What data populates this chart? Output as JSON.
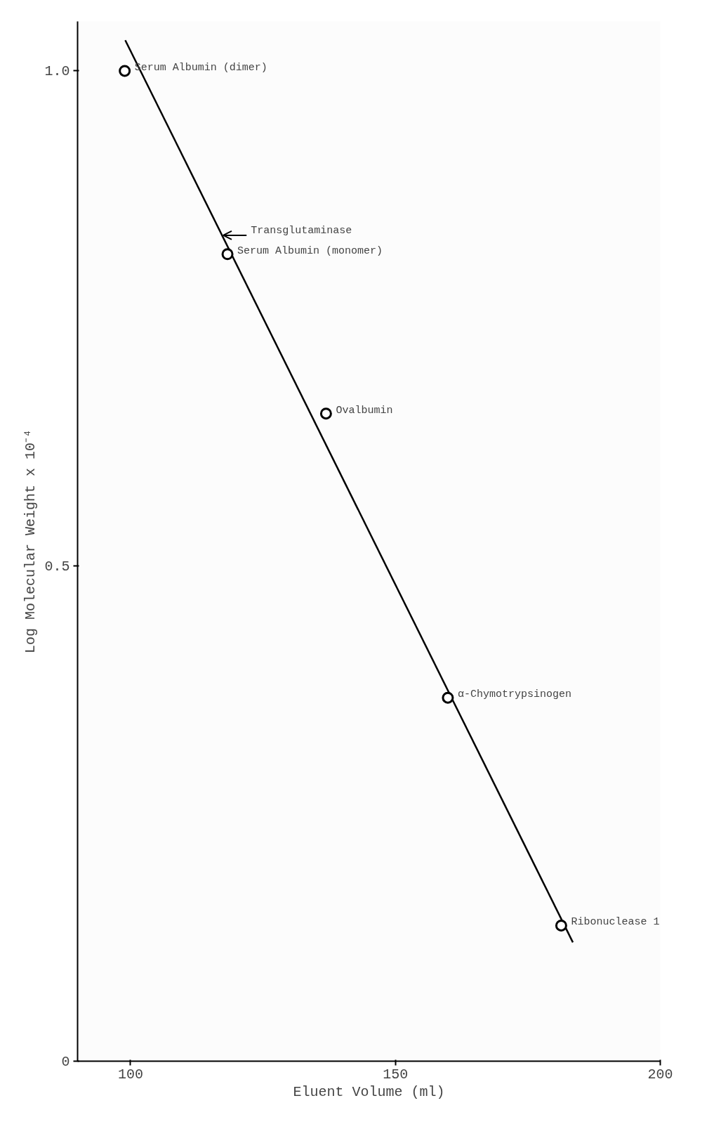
{
  "chart_data": {
    "type": "scatter",
    "xlabel": "Eluent Volume (ml)",
    "ylabel": "Log Molecular Weight x 10⁻⁴",
    "x": [
      98.9,
      118.3,
      136.9,
      159.9,
      181.3
    ],
    "values": [
      1.0,
      0.815,
      0.654,
      0.367,
      0.137
    ],
    "color": "#000000",
    "marker": "circle",
    "series": [
      {
        "type": "line",
        "marker": "none",
        "color": "#000000",
        "x": [
          99.0,
          183.5
        ],
        "values": [
          1.031,
          0.12
        ]
      }
    ],
    "xlim": [
      90,
      200
    ],
    "ylim": [
      0,
      1.05
    ],
    "xticks": [
      100,
      150,
      200
    ],
    "yticks": [
      0,
      0.5,
      {
        "value": 1.0,
        "label": "1.0"
      }
    ],
    "grid": false,
    "annotations": [
      {
        "text": "Serum Albumin (dimer)",
        "x": 98.9,
        "y": 1.0
      },
      {
        "text": "Transglutaminase",
        "x": 117.5,
        "y": 0.834
      },
      {
        "text": "Serum Albumin (monomer)",
        "x": 118.3,
        "y": 0.815
      },
      {
        "text": "Ovalbumin",
        "x": 136.9,
        "y": 0.654
      },
      {
        "text": "α-Chymotrypsinogen",
        "x": 159.9,
        "y": 0.367
      },
      {
        "text": "Ribonuclease 1",
        "x": 181.3,
        "y": 0.137
      }
    ]
  }
}
